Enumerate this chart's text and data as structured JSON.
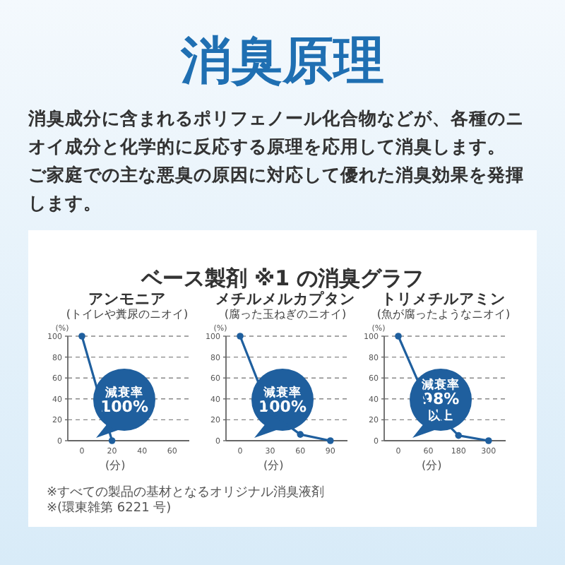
{
  "chart_data": [
    {
      "type": "other",
      "title": "消臭原理",
      "annotations": [
        "消臭成分に含まれるポリフェノール化合物などが、各種のニオイ成分と化学的に反応する原理を応用して消臭します。",
        "ご家庭での主な悪臭の原因に対応して優れた消臭効果を発揮します。",
        "ベース製剤 ※1 の消臭グラフ"
      ]
    },
    {
      "type": "line",
      "title": "アンモニア",
      "subtitle": "(トイレや糞尿のニオイ)",
      "ylabel": "(%)",
      "xlabel": "(分)",
      "categories": [
        "0",
        "20",
        "40",
        "60"
      ],
      "values": [
        100,
        0,
        null,
        null
      ],
      "color": "#1f5f9e",
      "ylim": [
        0,
        100
      ],
      "yticks": [
        0,
        20,
        40,
        60,
        80,
        100
      ],
      "grid": "y",
      "marker": "circle",
      "annotations": [
        "減衰率",
        "100%"
      ]
    },
    {
      "type": "line",
      "title": "メチルメルカプタン",
      "subtitle": "(腐った玉ねぎのニオイ)",
      "ylabel": "(%)",
      "xlabel": "(分)",
      "categories": [
        "0",
        "30",
        "60",
        "90"
      ],
      "values": [
        100,
        27,
        6,
        0
      ],
      "color": "#1f5f9e",
      "ylim": [
        0,
        100
      ],
      "yticks": [
        0,
        20,
        40,
        60,
        80,
        100
      ],
      "grid": "y",
      "marker": "circle",
      "annotations": [
        "減衰率",
        "100%"
      ]
    },
    {
      "type": "line",
      "title": "トリメチルアミン",
      "subtitle": "(魚が腐ったようなニオイ)",
      "ylabel": "(%)",
      "xlabel": "(分)",
      "categories": [
        "0",
        "60",
        "180",
        "300"
      ],
      "values": [
        100,
        34,
        5,
        0
      ],
      "color": "#1f5f9e",
      "ylim": [
        0,
        100
      ],
      "yticks": [
        0,
        20,
        40,
        60,
        80,
        100
      ],
      "grid": "y",
      "marker": "circle",
      "annotations": [
        "減衰率",
        "98%",
        "以上"
      ]
    },
    {
      "type": "other",
      "annotations": [
        "※すべての製品の基材となるオリジナル消臭液剤",
        "※(環東雑第 6221 号)"
      ]
    }
  ]
}
